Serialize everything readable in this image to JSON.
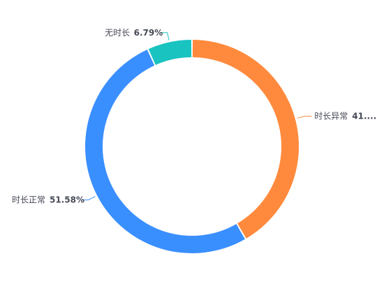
{
  "chart_data": {
    "type": "pie",
    "variant": "donut",
    "title": "",
    "slices": [
      {
        "name": "时长异常",
        "value": 41.63,
        "label_pct": "41....",
        "color": "#FF8A3D"
      },
      {
        "name": "时长正常",
        "value": 51.58,
        "label_pct": "51.58%",
        "color": "#3A8FFF"
      },
      {
        "name": "无时长",
        "value": 6.79,
        "label_pct": "6.79%",
        "color": "#19C3C0"
      }
    ],
    "start_angle": "12 o'clock",
    "direction": "clockwise",
    "legend": "none"
  }
}
